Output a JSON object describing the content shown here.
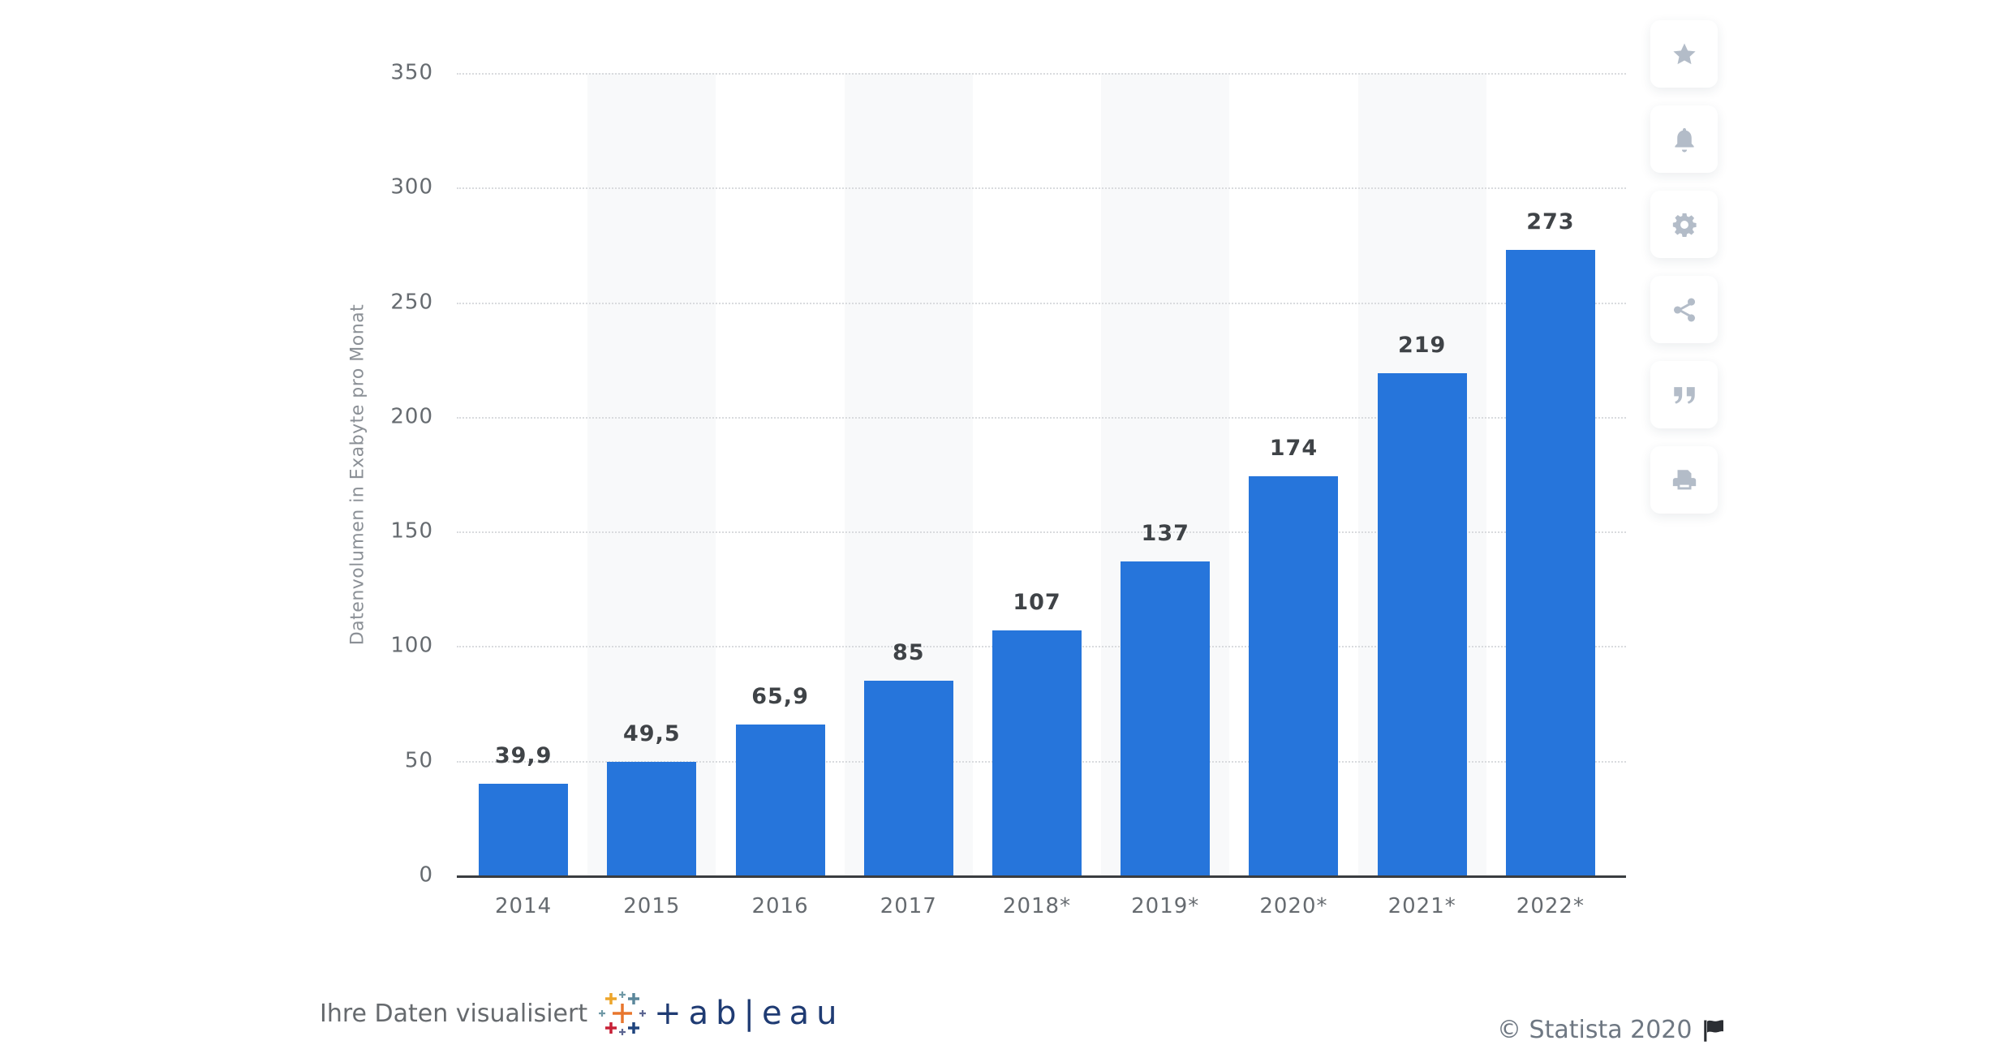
{
  "chart_data": {
    "type": "bar",
    "title": "",
    "xlabel": "",
    "ylabel": "Datenvolumen in Exabyte pro Monat",
    "categories": [
      "2014",
      "2015",
      "2016",
      "2017",
      "2018*",
      "2019*",
      "2020*",
      "2021*",
      "2022*"
    ],
    "values": [
      39.9,
      49.5,
      65.9,
      85,
      107,
      137,
      174,
      219,
      273
    ],
    "value_labels": [
      "39,9",
      "49,5",
      "65,9",
      "85",
      "107",
      "137",
      "174",
      "219",
      "273"
    ],
    "ylim": [
      0,
      350
    ],
    "yticks": [
      "0",
      "50",
      "100",
      "150",
      "200",
      "250",
      "300",
      "350"
    ],
    "grid": true,
    "legend": null,
    "bar_color": "#2675db"
  },
  "toolbar": {
    "items": [
      {
        "name": "star",
        "label": "Favorit"
      },
      {
        "name": "bell",
        "label": "Benachrichtigung"
      },
      {
        "name": "gear",
        "label": "Einstellungen"
      },
      {
        "name": "share",
        "label": "Teilen"
      },
      {
        "name": "quote",
        "label": "Zitieren"
      },
      {
        "name": "print",
        "label": "Drucken"
      }
    ]
  },
  "footer": {
    "visualized_text": "Ihre Daten visualisiert",
    "tableau_word": "+ab|eau",
    "copyright": "© Statista 2020"
  }
}
